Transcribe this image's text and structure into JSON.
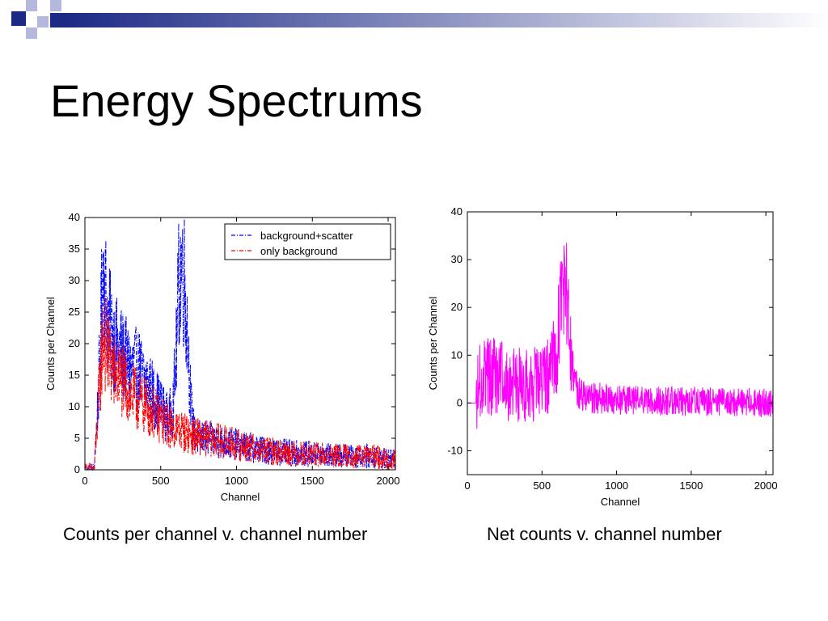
{
  "slide": {
    "title": "Energy Spectrums",
    "caption_left": "Counts per channel v. channel number",
    "caption_right": "Net counts v. channel number"
  },
  "colors": {
    "deco_navy": "#1c2a85",
    "deco_light": "#b3b8dc",
    "series_blue": "#0000ff",
    "series_red": "#ff0000",
    "series_magenta": "#ff00ff"
  },
  "chart_data": [
    {
      "type": "line",
      "title": "",
      "xlabel": "Channel",
      "ylabel": "Counts per Channel",
      "xlim": [
        0,
        2048
      ],
      "ylim": [
        0,
        40
      ],
      "xticks": [
        "0",
        "500",
        "1000",
        "1500",
        "2000"
      ],
      "yticks": [
        "0",
        "5",
        "10",
        "15",
        "20",
        "25",
        "30",
        "35",
        "40"
      ],
      "legend_position": "top-right",
      "noisy": true,
      "series": [
        {
          "name": "background+scatter",
          "color": "#0000ff",
          "style": "dashdot",
          "x": [
            0,
            60,
            80,
            100,
            120,
            150,
            200,
            250,
            300,
            350,
            400,
            450,
            500,
            550,
            580,
            600,
            620,
            640,
            660,
            680,
            700,
            720,
            750,
            800,
            900,
            1000,
            1100,
            1200,
            1300,
            1400,
            1500,
            1600,
            1700,
            1800,
            1900,
            2000,
            2048
          ],
          "y": [
            0,
            0,
            8,
            18,
            33,
            24,
            20,
            18,
            16,
            16,
            14,
            12,
            10,
            8,
            10,
            17,
            30,
            33,
            29,
            20,
            10,
            6,
            5,
            5,
            4.5,
            4,
            3.5,
            3,
            2.8,
            2.6,
            2.5,
            2.3,
            2.2,
            2.1,
            2.2,
            1.5,
            1.5
          ]
        },
        {
          "name": "only background",
          "color": "#ff0000",
          "style": "dashdot",
          "x": [
            0,
            60,
            80,
            100,
            120,
            150,
            200,
            250,
            300,
            350,
            400,
            450,
            500,
            550,
            600,
            650,
            700,
            800,
            900,
            1000,
            1100,
            1200,
            1300,
            1400,
            1500,
            1600,
            1700,
            1800,
            1900,
            2000,
            2048
          ],
          "y": [
            0,
            0,
            7,
            14,
            22,
            18,
            15,
            14,
            12,
            11,
            10,
            9,
            8,
            7,
            6.5,
            6,
            5.5,
            5,
            4.5,
            4,
            3.5,
            3,
            2.8,
            2.6,
            2.5,
            2.3,
            2.2,
            2.1,
            2.2,
            1.5,
            1.5
          ]
        }
      ]
    },
    {
      "type": "line",
      "title": "",
      "xlabel": "Channel",
      "ylabel": "Counts per Channel",
      "xlim": [
        0,
        2048
      ],
      "ylim": [
        -15,
        40
      ],
      "xticks": [
        "0",
        "500",
        "1000",
        "1500",
        "2000"
      ],
      "yticks": [
        "-10",
        "0",
        "10",
        "20",
        "30",
        "40"
      ],
      "noisy": true,
      "series": [
        {
          "name": "",
          "color": "#ff00ff",
          "style": "solid",
          "x": [
            0,
            60,
            80,
            100,
            150,
            200,
            300,
            400,
            500,
            550,
            600,
            620,
            640,
            660,
            680,
            700,
            720,
            750,
            800,
            900,
            1000,
            1200,
            1400,
            1600,
            1800,
            2000,
            2048
          ],
          "y": [
            0,
            0,
            5,
            6,
            6,
            5,
            4,
            4,
            4,
            6,
            12,
            18,
            26,
            24,
            16,
            8,
            4,
            2,
            1,
            1,
            0.5,
            0.5,
            0.3,
            0.3,
            0.2,
            0,
            0
          ]
        }
      ]
    }
  ]
}
